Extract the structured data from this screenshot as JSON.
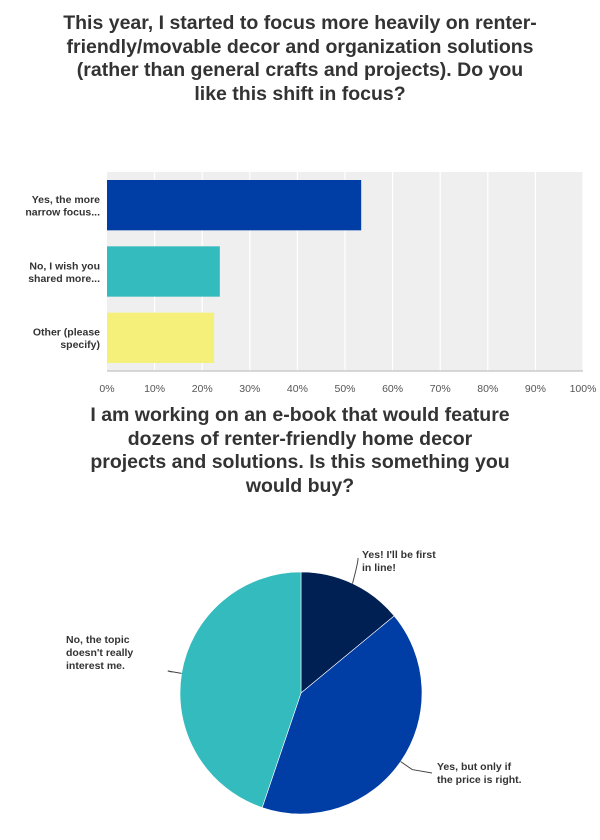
{
  "chart_data": [
    {
      "type": "bar",
      "orientation": "horizontal",
      "title": "This year, I started to focus more heavily on renter-friendly/movable decor and organization solutions (rather than general crafts and projects). Do you like this shift in focus?",
      "categories": [
        [
          "Yes, the more",
          "narrow focus..."
        ],
        [
          "No, I wish you",
          "shared more..."
        ],
        [
          "Other (please",
          "specify)"
        ]
      ],
      "values": [
        53.4,
        23.7,
        22.5
      ],
      "colors": [
        "#003da5",
        "#33bbbd",
        "#f5f07a"
      ],
      "xlim": [
        0,
        100
      ],
      "ticks": [
        "0%",
        "10%",
        "20%",
        "30%",
        "40%",
        "50%",
        "60%",
        "70%",
        "80%",
        "90%",
        "100%"
      ],
      "grid": true,
      "background": "#efefef"
    },
    {
      "type": "pie",
      "title": "I am working on an e-book that would feature dozens of renter-friendly home decor projects and solutions. Is this something you would buy?",
      "slices": [
        {
          "label": [
            "Yes! I'll be first",
            "in line!"
          ],
          "value": 14,
          "color": "#001f52"
        },
        {
          "label": [
            "Yes, but only if",
            "the price is right."
          ],
          "value": 41.2,
          "color": "#003da5"
        },
        {
          "label": [
            "No, the topic",
            "doesn't really",
            "interest me."
          ],
          "value": 44.8,
          "color": "#33bbbd"
        }
      ]
    }
  ]
}
